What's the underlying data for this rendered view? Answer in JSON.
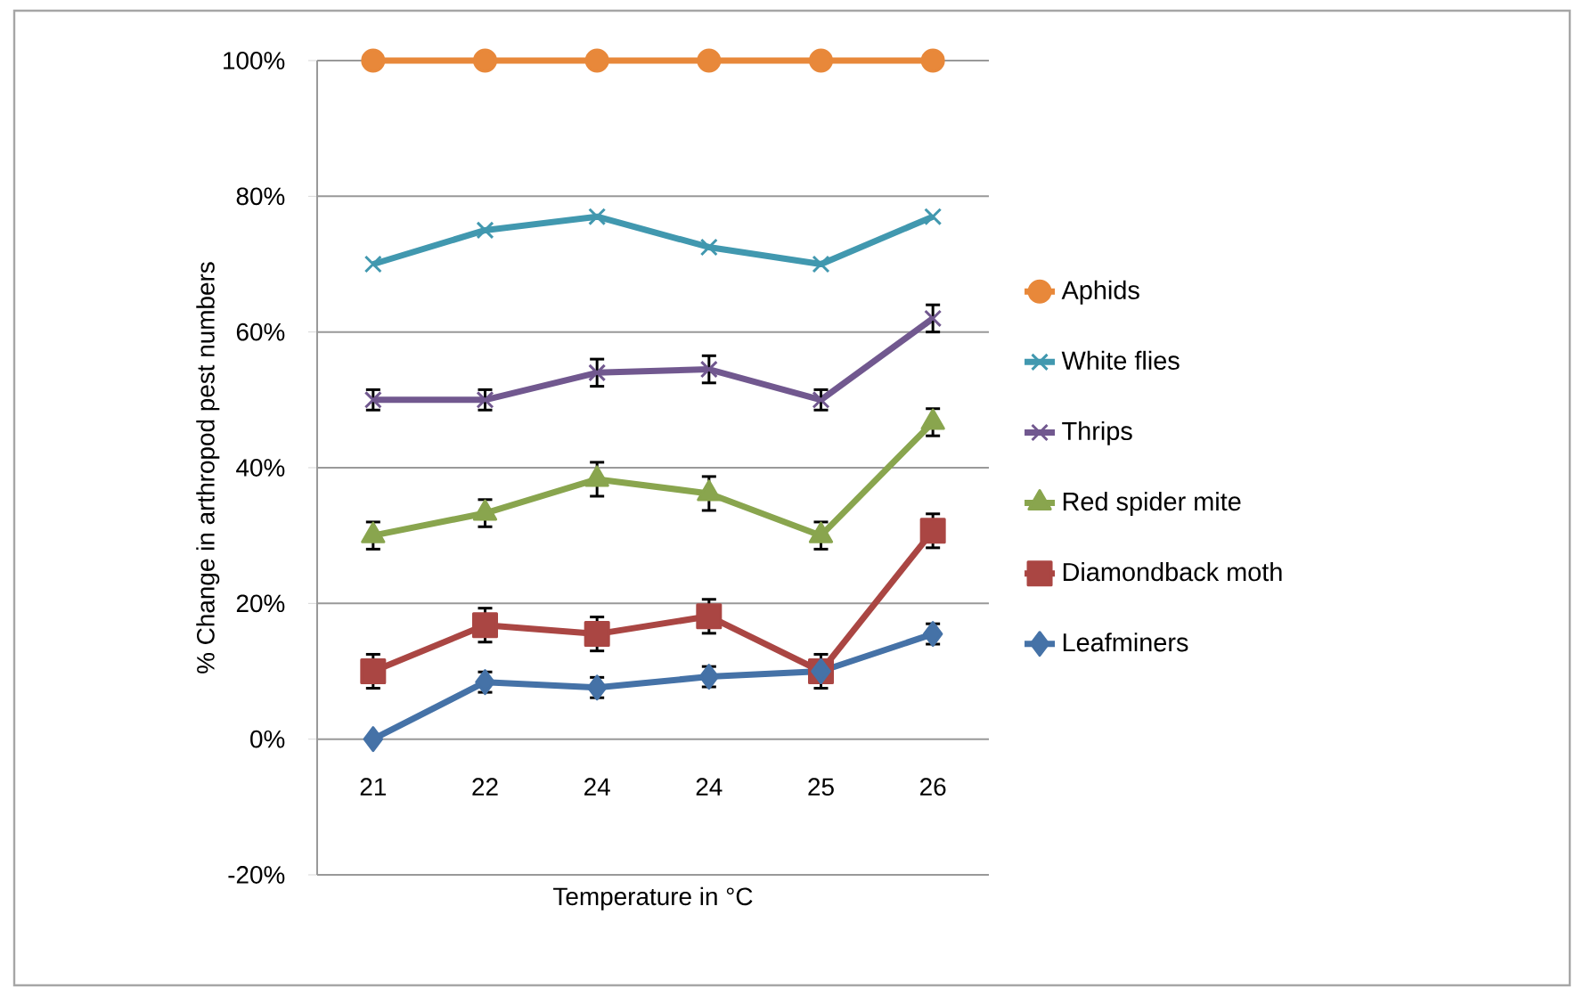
{
  "chart_data": {
    "type": "line",
    "xlabel": "Temperature in °C",
    "ylabel": "% Change in arthropod pest numbers",
    "categories": [
      "21",
      "22",
      "24",
      "24",
      "25",
      "26"
    ],
    "ylim": [
      -20,
      100
    ],
    "yticks": [
      {
        "value": -20,
        "label": "-20%"
      },
      {
        "value": 0,
        "label": "0%"
      },
      {
        "value": 20,
        "label": "20%"
      },
      {
        "value": 40,
        "label": "40%"
      },
      {
        "value": 60,
        "label": "60%"
      },
      {
        "value": 80,
        "label": "80%"
      },
      {
        "value": 100,
        "label": "100%"
      }
    ],
    "grid": "y",
    "legend": "right",
    "series": [
      {
        "name": "Aphids",
        "color": "#e8883a",
        "marker": "circle",
        "values": [
          100,
          100,
          100,
          100,
          100,
          100
        ]
      },
      {
        "name": "White flies",
        "color": "#4198af",
        "marker": "cross",
        "values": [
          70,
          75,
          77,
          72.5,
          70,
          77
        ]
      },
      {
        "name": "Thrips",
        "color": "#71588f",
        "marker": "cross",
        "values": [
          50,
          50,
          54,
          54.5,
          50,
          62
        ],
        "errors": [
          1.5,
          1.5,
          2,
          2,
          1.5,
          2
        ]
      },
      {
        "name": "Red spider mite",
        "color": "#89a54e",
        "marker": "triangle",
        "values": [
          30,
          33.3,
          38.3,
          36.2,
          30,
          46.7
        ],
        "errors": [
          2,
          2,
          2.5,
          2.5,
          2,
          2
        ]
      },
      {
        "name": "Diamondback moth",
        "color": "#aa4643",
        "marker": "square",
        "values": [
          10,
          16.8,
          15.5,
          18.1,
          10,
          30.7
        ],
        "errors": [
          2.5,
          2.5,
          2.5,
          2.5,
          2.5,
          2.5
        ]
      },
      {
        "name": "Leafminers",
        "color": "#4572a7",
        "marker": "diamond",
        "values": [
          0,
          8.4,
          7.6,
          9.2,
          10,
          15.5
        ],
        "errors": [
          null,
          1.5,
          1.5,
          1.5,
          null,
          1.5
        ]
      }
    ]
  }
}
